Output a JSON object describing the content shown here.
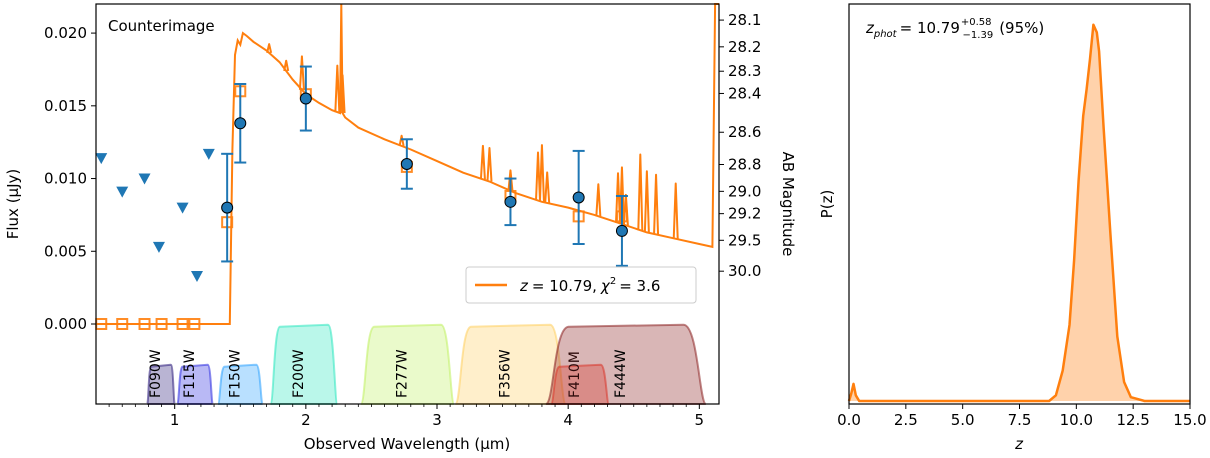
{
  "chart_data": [
    {
      "type": "line",
      "panel": "sed",
      "title": "Counterimage",
      "xlabel": "Observed Wavelength (μm)",
      "ylabel": "Flux (μJy)",
      "ylabel_right": "AB Magnitude",
      "xlim": [
        0.4,
        5.15
      ],
      "ylim": [
        -0.0055,
        0.022
      ],
      "xticks": [
        1,
        2,
        3,
        4,
        5
      ],
      "yticks": [
        0.0,
        0.005,
        0.01,
        0.015,
        0.02
      ],
      "ytick_labels": [
        "0.000",
        "0.005",
        "0.010",
        "0.015",
        "0.020"
      ],
      "mag_ticks": [
        28.1,
        28.2,
        28.3,
        28.4,
        28.6,
        28.8,
        29.0,
        29.2,
        29.5,
        30.0
      ],
      "mag_tick_labels": [
        "28.1",
        "28.2",
        "28.3",
        "28.4",
        "28.6",
        "28.8",
        "29.0",
        "29.2",
        "29.5",
        "30.0"
      ],
      "legend": {
        "label": "z = 10.79, χ² = 3.6",
        "z_text": "z",
        "z_value": "= 10.79,",
        "chi_text": "χ",
        "chi_exp": "2",
        "chi_value": "= 3.6",
        "location": "lower-right"
      },
      "series": [
        {
          "name": "model SED",
          "color": "#ff7f0e",
          "x": [
            0.4,
            1.42,
            1.44,
            1.46,
            1.48,
            1.5,
            1.52,
            1.55,
            1.6,
            1.7,
            1.8,
            1.9,
            2.0,
            2.1,
            2.2,
            2.26,
            2.27,
            2.28,
            2.3,
            2.4,
            2.6,
            2.8,
            3.0,
            3.2,
            3.4,
            3.6,
            3.8,
            4.0,
            4.2,
            4.4,
            4.6,
            4.8,
            5.0,
            5.1,
            5.12,
            5.15
          ],
          "y": [
            0.0,
            0.0,
            0.012,
            0.0185,
            0.0195,
            0.0192,
            0.02,
            0.0198,
            0.0194,
            0.0188,
            0.018,
            0.0168,
            0.0158,
            0.0152,
            0.0147,
            0.0145,
            0.022,
            0.0145,
            0.0142,
            0.0135,
            0.0127,
            0.012,
            0.0112,
            0.0104,
            0.0098,
            0.009,
            0.0084,
            0.008,
            0.0075,
            0.0069,
            0.0063,
            0.0059,
            0.0055,
            0.0053,
            0.022,
            0.022
          ]
        }
      ],
      "model_spikes": [
        {
          "x": 1.72,
          "height": 0.0006
        },
        {
          "x": 1.85,
          "height": 0.0007
        },
        {
          "x": 1.97,
          "height": 0.0023
        },
        {
          "x": 2.24,
          "height": 0.0032
        },
        {
          "x": 2.28,
          "height": 0.0026
        },
        {
          "x": 2.73,
          "height": 0.0007
        },
        {
          "x": 3.35,
          "height": 0.0023
        },
        {
          "x": 3.4,
          "height": 0.0023
        },
        {
          "x": 3.56,
          "height": 0.0014
        },
        {
          "x": 3.77,
          "height": 0.0033
        },
        {
          "x": 3.8,
          "height": 0.0039
        },
        {
          "x": 3.84,
          "height": 0.0021
        },
        {
          "x": 4.23,
          "height": 0.0022
        },
        {
          "x": 4.38,
          "height": 0.0034
        },
        {
          "x": 4.41,
          "height": 0.0039
        },
        {
          "x": 4.44,
          "height": 0.0021
        },
        {
          "x": 4.55,
          "height": 0.0052
        },
        {
          "x": 4.6,
          "height": 0.0042
        },
        {
          "x": 4.67,
          "height": 0.0041
        },
        {
          "x": 4.82,
          "height": 0.0038
        }
      ],
      "photometry": {
        "x": [
          1.4,
          1.5,
          2.0,
          2.77,
          3.56,
          4.08,
          4.41
        ],
        "y": [
          0.008,
          0.0138,
          0.0155,
          0.011,
          0.0084,
          0.0087,
          0.0064
        ],
        "err": [
          0.0037,
          0.0027,
          0.0022,
          0.0017,
          0.0016,
          0.0032,
          0.0024
        ]
      },
      "upper_limits": {
        "x": [
          0.44,
          0.6,
          0.77,
          0.88,
          1.06,
          1.17,
          1.26
        ],
        "y": [
          0.0114,
          0.0091,
          0.01,
          0.0053,
          0.008,
          0.0033,
          0.0117
        ]
      },
      "model_bandpass_points": {
        "x": [
          0.44,
          0.6,
          0.77,
          0.9,
          1.06,
          1.15,
          1.4,
          1.5,
          2.0,
          2.77,
          3.56,
          4.08,
          4.41
        ],
        "y": [
          0.0,
          0.0,
          0.0,
          0.0,
          0.0,
          0.0,
          0.007,
          0.016,
          0.0158,
          0.0108,
          0.0088,
          0.0074,
          0.0074
        ]
      },
      "filters": [
        {
          "name": "F090W",
          "range": [
            0.79,
            1.0
          ],
          "color": "#2a1a7a"
        },
        {
          "name": "F115W",
          "range": [
            1.02,
            1.29
          ],
          "color": "#2b2be0"
        },
        {
          "name": "F150W",
          "range": [
            1.33,
            1.67
          ],
          "color": "#29a0ff"
        },
        {
          "name": "F200W",
          "range": [
            1.73,
            2.24
          ],
          "color": "#2ee8c0"
        },
        {
          "name": "F277W",
          "range": [
            2.42,
            3.13
          ],
          "color": "#c0f060"
        },
        {
          "name": "F356W",
          "range": [
            3.14,
            3.98
          ],
          "color": "#ffcf60"
        },
        {
          "name": "F410M",
          "range": [
            3.87,
            4.31
          ],
          "color": "#ff4030"
        },
        {
          "name": "F444W",
          "range": [
            3.83,
            5.05
          ],
          "color": "#8b2020"
        }
      ]
    },
    {
      "type": "area",
      "panel": "pz",
      "annotation": {
        "z_label": "z",
        "sub": "phot",
        "value": "= 10.79",
        "plus": "+0.58",
        "minus": "−1.39",
        "conf": "(95%)"
      },
      "xlabel": "z",
      "ylabel": "P(z)",
      "xlim": [
        0,
        15
      ],
      "xticks": [
        0,
        2.5,
        5,
        7.5,
        10,
        12.5,
        15
      ],
      "xtick_labels": [
        "0.0",
        "2.5",
        "5.0",
        "7.5",
        "10.0",
        "12.5",
        "15.0"
      ],
      "color": "#ff7f0e",
      "x": [
        0.0,
        0.1,
        0.2,
        0.3,
        0.45,
        2.0,
        8.8,
        9.1,
        9.4,
        9.7,
        9.9,
        10.1,
        10.3,
        10.45,
        10.6,
        10.75,
        10.9,
        11.0,
        11.2,
        11.5,
        11.8,
        12.1,
        12.4,
        13.0,
        15.0
      ],
      "y": [
        0.0,
        0.02,
        0.045,
        0.015,
        0.0,
        0.0,
        0.0,
        0.015,
        0.08,
        0.2,
        0.37,
        0.58,
        0.75,
        0.82,
        0.9,
        0.99,
        0.97,
        0.92,
        0.72,
        0.44,
        0.17,
        0.05,
        0.01,
        0.0,
        0.0
      ]
    }
  ]
}
